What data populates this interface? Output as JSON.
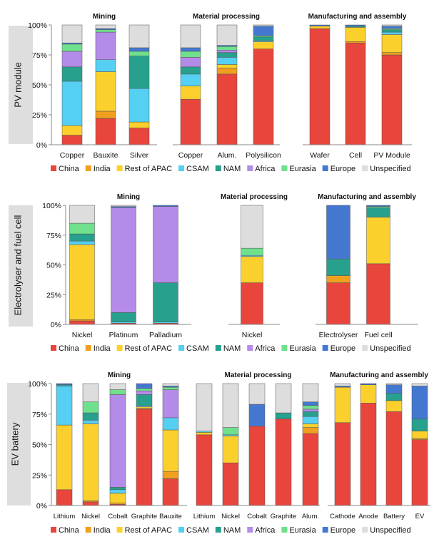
{
  "legend": [
    {
      "name": "China",
      "color": "#e8453c"
    },
    {
      "name": "India",
      "color": "#f0a01e"
    },
    {
      "name": "Rest of APAC",
      "color": "#fcd02c"
    },
    {
      "name": "CSAM",
      "color": "#55cff2"
    },
    {
      "name": "NAM",
      "color": "#27a08e"
    },
    {
      "name": "Africa",
      "color": "#b48be8"
    },
    {
      "name": "Eurasia",
      "color": "#6fe08c"
    },
    {
      "name": "Europe",
      "color": "#4478d0"
    },
    {
      "name": "Unspecified",
      "color": "#dddddd"
    }
  ],
  "chart_data": [
    {
      "type": "bar",
      "stacked": true,
      "row": "PV module",
      "title": "Mining",
      "categories": [
        "Copper",
        "Bauxite",
        "Silver"
      ],
      "y_ticks": [
        "0%",
        "25%",
        "50%",
        "75%",
        "100%"
      ],
      "ylim": [
        0,
        100
      ],
      "series": [
        {
          "name": "China",
          "values": [
            8,
            22,
            14
          ]
        },
        {
          "name": "India",
          "values": [
            0,
            6,
            0
          ]
        },
        {
          "name": "Rest of APAC",
          "values": [
            8,
            33,
            5
          ]
        },
        {
          "name": "CSAM",
          "values": [
            37,
            10,
            28
          ]
        },
        {
          "name": "NAM",
          "values": [
            12,
            0,
            27
          ]
        },
        {
          "name": "Africa",
          "values": [
            13,
            23,
            0
          ]
        },
        {
          "name": "Eurasia",
          "values": [
            6,
            2,
            4
          ]
        },
        {
          "name": "Europe",
          "values": [
            1,
            1,
            3
          ]
        },
        {
          "name": "Unspecified",
          "values": [
            15,
            3,
            19
          ]
        }
      ]
    },
    {
      "type": "bar",
      "stacked": true,
      "row": "PV module",
      "title": "Material processing",
      "categories": [
        "Copper",
        "Alum.",
        "Polysilicon"
      ],
      "ylim": [
        0,
        100
      ],
      "series": [
        {
          "name": "China",
          "values": [
            38,
            59,
            80
          ]
        },
        {
          "name": "India",
          "values": [
            0,
            5,
            0
          ]
        },
        {
          "name": "Rest of APAC",
          "values": [
            11,
            3,
            6
          ]
        },
        {
          "name": "CSAM",
          "values": [
            10,
            6,
            1
          ]
        },
        {
          "name": "NAM",
          "values": [
            6,
            4,
            3
          ]
        },
        {
          "name": "Africa",
          "values": [
            8,
            2,
            0
          ]
        },
        {
          "name": "Eurasia",
          "values": [
            5,
            3,
            1
          ]
        },
        {
          "name": "Europe",
          "values": [
            3,
            1,
            8
          ]
        },
        {
          "name": "Unspecified",
          "values": [
            19,
            17,
            1
          ]
        }
      ]
    },
    {
      "type": "bar",
      "stacked": true,
      "row": "PV module",
      "title": "Manufacturing and assembly",
      "categories": [
        "Wafer",
        "Cell",
        "PV Module"
      ],
      "ylim": [
        0,
        100
      ],
      "series": [
        {
          "name": "China",
          "values": [
            97,
            85,
            75
          ]
        },
        {
          "name": "India",
          "values": [
            0,
            1,
            2
          ]
        },
        {
          "name": "Rest of APAC",
          "values": [
            2,
            12,
            15
          ]
        },
        {
          "name": "CSAM",
          "values": [
            0,
            0,
            2
          ]
        },
        {
          "name": "NAM",
          "values": [
            0,
            1,
            2
          ]
        },
        {
          "name": "Africa",
          "values": [
            0,
            0,
            0
          ]
        },
        {
          "name": "Eurasia",
          "values": [
            0,
            0,
            1
          ]
        },
        {
          "name": "Europe",
          "values": [
            1,
            1,
            2
          ]
        },
        {
          "name": "Unspecified",
          "values": [
            0,
            0,
            1
          ]
        }
      ]
    },
    {
      "type": "bar",
      "stacked": true,
      "row": "Electrolyser and fuel cell",
      "title": "Mining",
      "categories": [
        "Nickel",
        "Platinum",
        "Palladium"
      ],
      "y_ticks": [
        "0%",
        "25%",
        "50%",
        "75%",
        "100%"
      ],
      "ylim": [
        0,
        100
      ],
      "series": [
        {
          "name": "China",
          "values": [
            3,
            1,
            1
          ]
        },
        {
          "name": "India",
          "values": [
            1,
            0,
            0
          ]
        },
        {
          "name": "Rest of APAC",
          "values": [
            63,
            0,
            0
          ]
        },
        {
          "name": "CSAM",
          "values": [
            3,
            1,
            1
          ]
        },
        {
          "name": "NAM",
          "values": [
            6,
            8,
            33
          ]
        },
        {
          "name": "Africa",
          "values": [
            0,
            88,
            64
          ]
        },
        {
          "name": "Eurasia",
          "values": [
            9,
            0,
            0
          ]
        },
        {
          "name": "Europe",
          "values": [
            0,
            1,
            1
          ]
        },
        {
          "name": "Unspecified",
          "values": [
            15,
            1,
            0
          ]
        }
      ]
    },
    {
      "type": "bar",
      "stacked": true,
      "row": "Electrolyser and fuel cell",
      "title": "Material processing",
      "categories": [
        "Nickel"
      ],
      "ylim": [
        0,
        100
      ],
      "series": [
        {
          "name": "China",
          "values": [
            35
          ]
        },
        {
          "name": "India",
          "values": [
            0
          ]
        },
        {
          "name": "Rest of APAC",
          "values": [
            22
          ]
        },
        {
          "name": "CSAM",
          "values": [
            1
          ]
        },
        {
          "name": "NAM",
          "values": [
            0
          ]
        },
        {
          "name": "Africa",
          "values": [
            0
          ]
        },
        {
          "name": "Eurasia",
          "values": [
            6
          ]
        },
        {
          "name": "Europe",
          "values": [
            0
          ]
        },
        {
          "name": "Unspecified",
          "values": [
            36
          ]
        }
      ]
    },
    {
      "type": "bar",
      "stacked": true,
      "row": "Electrolyser and fuel cell",
      "title": "Manufacturing and assembly",
      "categories": [
        "Electrolyser",
        "Fuel cell"
      ],
      "ylim": [
        0,
        100
      ],
      "series": [
        {
          "name": "China",
          "values": [
            35,
            51
          ]
        },
        {
          "name": "India",
          "values": [
            6,
            0
          ]
        },
        {
          "name": "Rest of APAC",
          "values": [
            0,
            39
          ]
        },
        {
          "name": "CSAM",
          "values": [
            0,
            0
          ]
        },
        {
          "name": "NAM",
          "values": [
            14,
            8
          ]
        },
        {
          "name": "Africa",
          "values": [
            0,
            0
          ]
        },
        {
          "name": "Eurasia",
          "values": [
            0,
            1
          ]
        },
        {
          "name": "Europe",
          "values": [
            45,
            1
          ]
        },
        {
          "name": "Unspecified",
          "values": [
            0,
            0
          ]
        }
      ]
    },
    {
      "type": "bar",
      "stacked": true,
      "row": "EV battery",
      "title": "Mining",
      "categories": [
        "Lithium",
        "Nickel",
        "Cobalt",
        "Graphite",
        "Bauxite"
      ],
      "y_ticks": [
        "0%",
        "25%",
        "50%",
        "75%",
        "100%"
      ],
      "ylim": [
        0,
        100
      ],
      "series": [
        {
          "name": "China",
          "values": [
            13,
            3,
            1,
            79,
            22
          ]
        },
        {
          "name": "India",
          "values": [
            0,
            1,
            1,
            1,
            6
          ]
        },
        {
          "name": "Rest of APAC",
          "values": [
            53,
            63,
            8,
            1,
            34
          ]
        },
        {
          "name": "CSAM",
          "values": [
            32,
            3,
            3,
            1,
            10
          ]
        },
        {
          "name": "NAM",
          "values": [
            1,
            6,
            2,
            9,
            0
          ]
        },
        {
          "name": "Africa",
          "values": [
            0,
            0,
            76,
            3,
            23
          ]
        },
        {
          "name": "Eurasia",
          "values": [
            0,
            9,
            4,
            2,
            2
          ]
        },
        {
          "name": "Europe",
          "values": [
            1,
            0,
            0,
            4,
            1
          ]
        },
        {
          "name": "Unspecified",
          "values": [
            0,
            15,
            5,
            0,
            2
          ]
        }
      ]
    },
    {
      "type": "bar",
      "stacked": true,
      "row": "EV battery",
      "title": "Material processing",
      "categories": [
        "Lithium",
        "Nickel",
        "Cobalt",
        "Graphite",
        "Alum."
      ],
      "ylim": [
        0,
        100
      ],
      "series": [
        {
          "name": "China",
          "values": [
            58,
            35,
            65,
            71,
            59
          ]
        },
        {
          "name": "India",
          "values": [
            0,
            0,
            0,
            0,
            5
          ]
        },
        {
          "name": "Rest of APAC",
          "values": [
            2,
            22,
            0,
            0,
            3
          ]
        },
        {
          "name": "CSAM",
          "values": [
            1,
            1,
            0,
            0,
            6
          ]
        },
        {
          "name": "NAM",
          "values": [
            0,
            0,
            0,
            5,
            4
          ]
        },
        {
          "name": "Africa",
          "values": [
            0,
            0,
            0,
            0,
            2
          ]
        },
        {
          "name": "Eurasia",
          "values": [
            0,
            6,
            0,
            0,
            3
          ]
        },
        {
          "name": "Europe",
          "values": [
            0,
            0,
            18,
            0,
            3
          ]
        },
        {
          "name": "Unspecified",
          "values": [
            39,
            36,
            17,
            24,
            15
          ]
        }
      ]
    },
    {
      "type": "bar",
      "stacked": true,
      "row": "EV battery",
      "title": "Manufacturing and assembly",
      "categories": [
        "Cathode",
        "Anode",
        "Battery",
        "EV"
      ],
      "ylim": [
        0,
        100
      ],
      "series": [
        {
          "name": "China",
          "values": [
            68,
            84,
            77,
            54
          ]
        },
        {
          "name": "India",
          "values": [
            0,
            0,
            0,
            1
          ]
        },
        {
          "name": "Rest of APAC",
          "values": [
            29,
            15,
            9,
            6
          ]
        },
        {
          "name": "CSAM",
          "values": [
            0,
            0,
            0,
            0
          ]
        },
        {
          "name": "NAM",
          "values": [
            0,
            0,
            6,
            10
          ]
        },
        {
          "name": "Africa",
          "values": [
            0,
            0,
            0,
            0
          ]
        },
        {
          "name": "Eurasia",
          "values": [
            0,
            0,
            0,
            0
          ]
        },
        {
          "name": "Europe",
          "values": [
            1,
            1,
            7,
            27
          ]
        },
        {
          "name": "Unspecified",
          "values": [
            2,
            0,
            1,
            2
          ]
        }
      ]
    }
  ]
}
